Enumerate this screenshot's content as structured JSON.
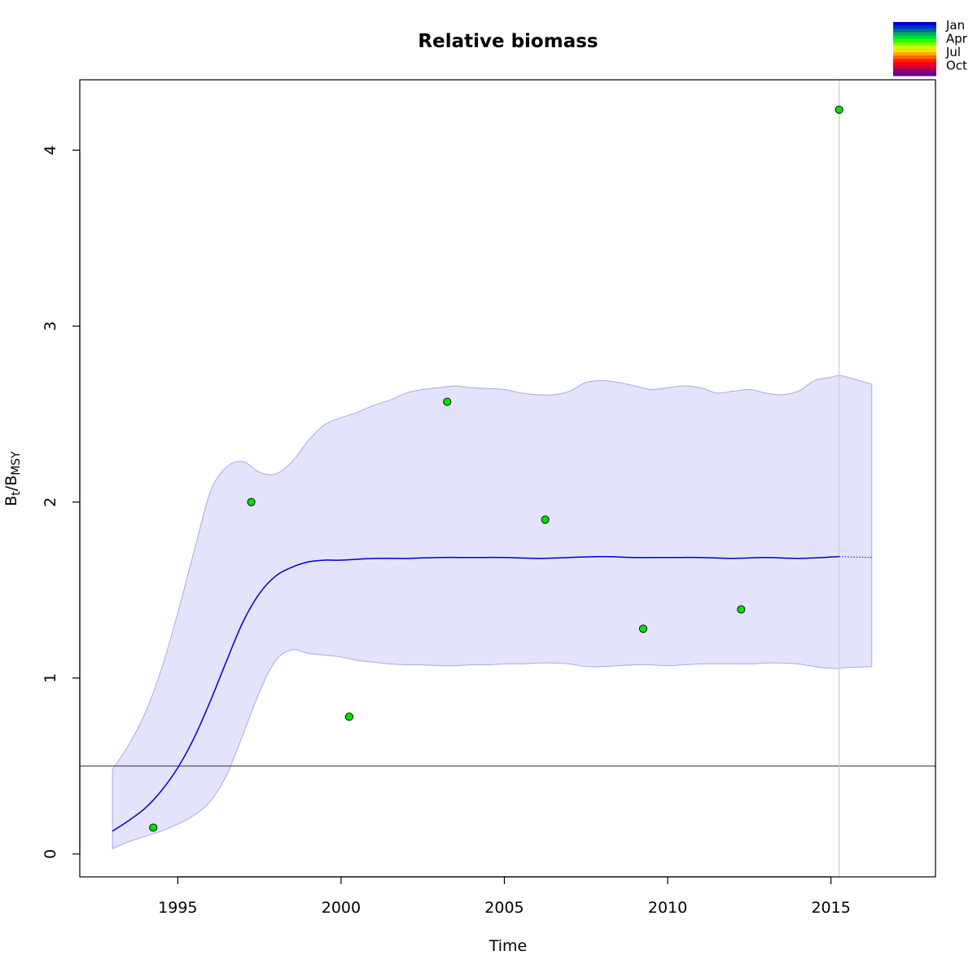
{
  "chart_data": {
    "type": "line",
    "title": "Relative biomass",
    "xlabel": "Time",
    "ylabel": {
      "main": "B",
      "sub1": "t",
      "sep": "/B",
      "sub2": "MSY"
    },
    "xlim": [
      1992,
      2018.2
    ],
    "ylim": [
      -0.13,
      4.4
    ],
    "xticks": [
      1995,
      2000,
      2005,
      2010,
      2015
    ],
    "yticks": [
      0,
      1,
      2,
      3,
      4
    ],
    "grid": false,
    "colors": {
      "ci_fill": "#e3e3fb",
      "ci_stroke": "#a9a9e8",
      "line": "#0000cd",
      "points": "#00e000",
      "hline": "#555555",
      "vline": "#cccccc"
    },
    "reference_hline": 0.5,
    "reference_vline": 2015.25,
    "series": [
      {
        "role": "estimate",
        "x": [
          1993.0,
          1993.5,
          1994.0,
          1994.5,
          1995.0,
          1995.5,
          1996.0,
          1996.5,
          1997.0,
          1997.5,
          1998.0,
          1998.5,
          1999.0,
          1999.5,
          2000.0,
          2001.0,
          2002.0,
          2003.0,
          2004.0,
          2005.0,
          2006.0,
          2007.0,
          2008.0,
          2009.0,
          2010.0,
          2011.0,
          2012.0,
          2013.0,
          2014.0,
          2015.25
        ],
        "y": [
          0.13,
          0.19,
          0.26,
          0.36,
          0.49,
          0.66,
          0.87,
          1.1,
          1.32,
          1.48,
          1.58,
          1.63,
          1.66,
          1.67,
          1.67,
          1.68,
          1.68,
          1.685,
          1.685,
          1.685,
          1.68,
          1.685,
          1.69,
          1.685,
          1.685,
          1.685,
          1.68,
          1.685,
          1.68,
          1.69
        ]
      },
      {
        "role": "projection",
        "x": [
          2015.25,
          2016.25
        ],
        "y": [
          1.69,
          1.685
        ]
      },
      {
        "role": "ci",
        "x": [
          1993.0,
          1993.5,
          1994.0,
          1994.5,
          1995.0,
          1995.5,
          1996.0,
          1996.5,
          1997.0,
          1997.5,
          1998.0,
          1998.5,
          1999.0,
          1999.5,
          2000.0,
          2000.5,
          2001.0,
          2001.5,
          2002.0,
          2002.5,
          2003.0,
          2003.5,
          2004.0,
          2004.5,
          2005.0,
          2005.5,
          2006.0,
          2006.5,
          2007.0,
          2007.5,
          2008.0,
          2008.5,
          2009.0,
          2009.5,
          2010.0,
          2010.5,
          2011.0,
          2011.5,
          2012.0,
          2012.5,
          2013.0,
          2013.5,
          2014.0,
          2014.5,
          2015.0,
          2015.25,
          2015.5,
          2016.25
        ],
        "upper": [
          0.48,
          0.62,
          0.8,
          1.05,
          1.37,
          1.72,
          2.06,
          2.2,
          2.23,
          2.17,
          2.16,
          2.23,
          2.35,
          2.44,
          2.48,
          2.51,
          2.55,
          2.58,
          2.62,
          2.64,
          2.65,
          2.66,
          2.65,
          2.645,
          2.64,
          2.62,
          2.61,
          2.61,
          2.63,
          2.68,
          2.69,
          2.68,
          2.66,
          2.64,
          2.65,
          2.66,
          2.65,
          2.62,
          2.63,
          2.64,
          2.62,
          2.61,
          2.63,
          2.69,
          2.71,
          2.72,
          2.71,
          2.67
        ],
        "lower": [
          0.03,
          0.07,
          0.1,
          0.13,
          0.17,
          0.22,
          0.3,
          0.45,
          0.68,
          0.92,
          1.1,
          1.16,
          1.14,
          1.13,
          1.12,
          1.1,
          1.09,
          1.08,
          1.075,
          1.075,
          1.07,
          1.07,
          1.075,
          1.075,
          1.08,
          1.08,
          1.085,
          1.085,
          1.08,
          1.065,
          1.065,
          1.07,
          1.075,
          1.075,
          1.07,
          1.075,
          1.08,
          1.08,
          1.08,
          1.08,
          1.085,
          1.085,
          1.08,
          1.065,
          1.055,
          1.055,
          1.06,
          1.065
        ]
      },
      {
        "role": "observations",
        "x": [
          1994.25,
          1997.25,
          2000.25,
          2003.25,
          2006.25,
          2009.25,
          2012.25,
          2015.25
        ],
        "y": [
          0.15,
          2.0,
          0.78,
          2.57,
          1.9,
          1.28,
          1.39,
          4.23
        ]
      }
    ],
    "legend": {
      "placement": "top-right",
      "labels": [
        "Jan",
        "Apr",
        "Jul",
        "Oct"
      ],
      "colors": [
        "#0000cd",
        "#0033cc",
        "#006699",
        "#00aa66",
        "#00dd33",
        "#22ff00",
        "#77ff00",
        "#ccff00",
        "#ffdd00",
        "#ffaa00",
        "#ff6600",
        "#ff2200",
        "#ee0022",
        "#cc0044",
        "#990066",
        "#660099"
      ]
    }
  }
}
